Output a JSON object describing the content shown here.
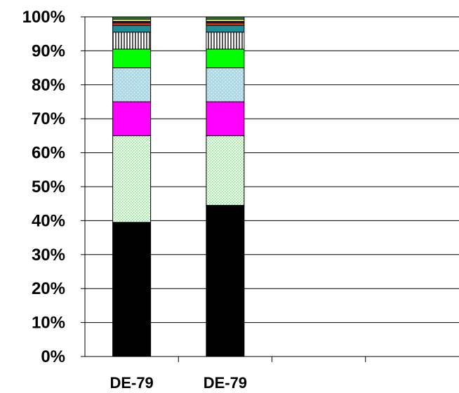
{
  "chart_data": {
    "type": "bar",
    "stacked": true,
    "percent_stacked": true,
    "title": "",
    "xlabel": "",
    "ylabel": "",
    "categories": [
      "DE-79",
      "DE-79"
    ],
    "ylim": [
      0,
      100
    ],
    "yticks": [
      "0%",
      "10%",
      "20%",
      "30%",
      "40%",
      "50%",
      "60%",
      "70%",
      "80%",
      "90%",
      "100%"
    ],
    "grid": "horizontal",
    "legend": "none",
    "series": [
      {
        "color": "#000000",
        "pattern": "solid",
        "values": [
          39.5,
          44.5
        ]
      },
      {
        "color": "#c8f5c8",
        "pattern": "dots-green",
        "values": [
          25.5,
          20.5
        ]
      },
      {
        "color": "#ff00ff",
        "pattern": "solid",
        "values": [
          10.0,
          10.0
        ]
      },
      {
        "color": "#add8e6",
        "pattern": "dots-white",
        "values": [
          10.0,
          10.0
        ]
      },
      {
        "color": "#00ff00",
        "pattern": "solid",
        "values": [
          5.5,
          5.5
        ]
      },
      {
        "color": "#c8c8c8",
        "pattern": "vertical-stripes",
        "values": [
          5.0,
          5.0
        ]
      },
      {
        "color": "#1a8f9a",
        "pattern": "solid",
        "values": [
          2.0,
          2.0
        ]
      },
      {
        "color": "#ff3300",
        "pattern": "solid",
        "values": [
          0.7,
          0.7
        ]
      },
      {
        "color": "#1a1a8f",
        "pattern": "solid",
        "values": [
          0.5,
          0.5
        ]
      },
      {
        "color": "#ffff66",
        "pattern": "solid",
        "values": [
          0.6,
          0.6
        ]
      },
      {
        "color": "#2e7d32",
        "pattern": "solid",
        "values": [
          0.7,
          0.7
        ]
      }
    ]
  }
}
